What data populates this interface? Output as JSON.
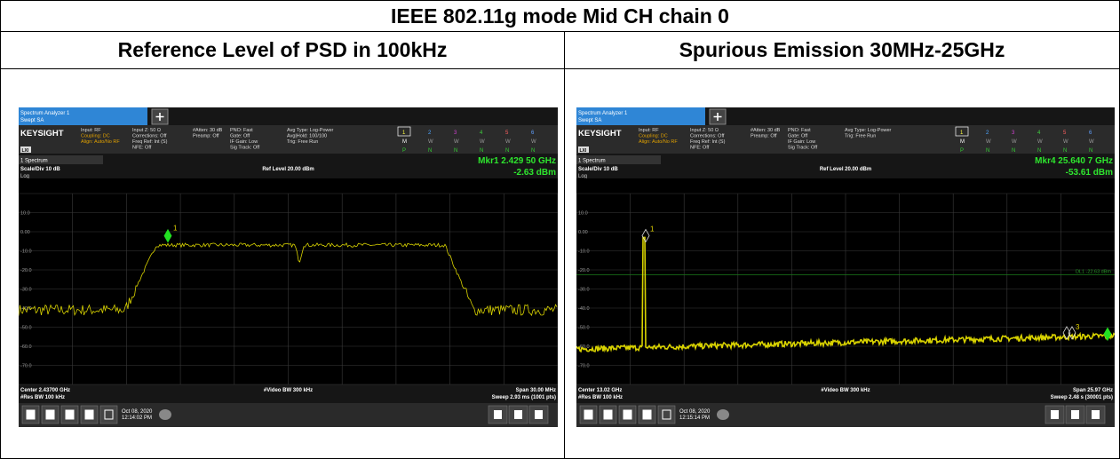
{
  "title": "IEEE 802.11g mode Mid CH chain 0",
  "columns": [
    "Reference Level of PSD in 100kHz",
    "Spurious Emission 30MHz-25GHz"
  ],
  "screens": [
    {
      "tab_title": "Spectrum Analyzer 1",
      "tab_sub": "Swept SA",
      "brand": "KEYSIGHT",
      "lxi": "LXI",
      "info": [
        [
          "Input: RF",
          "Coupling: DC",
          "Align: Auto/No RF"
        ],
        [
          "Input Z: 50 Ω",
          "Corrections: Off",
          "Freq Ref: Int (S)",
          "NFE: Off"
        ],
        [
          "#Atten: 30 dB",
          "Preamp: Off"
        ],
        [
          "PNO: Fast",
          "Gate: Off",
          "IF Gain: Low",
          "Sig Track: Off"
        ],
        [
          "Avg Type: Log-Power",
          "Avg|Hold: 100/100",
          "Trig: Free Run"
        ]
      ],
      "trace_numbers": [
        "1",
        "2",
        "3",
        "4",
        "5",
        "6"
      ],
      "trace_modes": [
        "M",
        "W",
        "W",
        "W",
        "W",
        "W"
      ],
      "trace_dets": [
        "P",
        "N",
        "N",
        "N",
        "N",
        "N"
      ],
      "view": "1 Spectrum",
      "marker": "Mkr1  2.429 50 GHz",
      "marker_value": "-2.63 dBm",
      "scale": "Scale/Div 10 dB",
      "ref": "Ref Level 20.00 dBm",
      "log": "Log",
      "ylabels": [
        "10.0",
        "0.00",
        "-10.0",
        "-20.0",
        "-30.0",
        "-40.0",
        "-50.0",
        "-60.0",
        "-70.0"
      ],
      "center": "Center 2.43700 GHz",
      "vbw": "#Video BW 300 kHz",
      "span": "Span 30.00 MHz",
      "rbw": "#Res BW 100 kHz",
      "sweep": "Sweep 2.93 ms (1001 pts)",
      "date": "Oct 08, 2020",
      "time": "12:14:02 PM",
      "markers": [
        "1"
      ]
    },
    {
      "tab_title": "Spectrum Analyzer 1",
      "tab_sub": "Swept SA",
      "brand": "KEYSIGHT",
      "lxi": "LXI",
      "info": [
        [
          "Input: RF",
          "Coupling: DC",
          "Align: Auto/No RF"
        ],
        [
          "Input Z: 50 Ω",
          "Corrections: Off",
          "Freq Ref: Int (S)",
          "NFE: Off"
        ],
        [
          "#Atten: 30 dB",
          "Preamp: Off"
        ],
        [
          "PNO: Fast",
          "Gate: Off",
          "IF Gain: Low",
          "Sig Track: Off"
        ],
        [
          "Avg Type: Log-Power",
          "Trig: Free Run"
        ]
      ],
      "trace_numbers": [
        "1",
        "2",
        "3",
        "4",
        "5",
        "6"
      ],
      "trace_modes": [
        "M",
        "W",
        "W",
        "W",
        "W",
        "W"
      ],
      "trace_dets": [
        "P",
        "N",
        "N",
        "N",
        "N",
        "N"
      ],
      "view": "1 Spectrum",
      "marker": "Mkr4  25.640 7 GHz",
      "marker_value": "-53.61 dBm",
      "scale": "Scale/Div 10 dB",
      "ref": "Ref Level 20.00 dBm",
      "log": "Log",
      "ylabels": [
        "10.0",
        "0.00",
        "-10.0",
        "-20.0",
        "-30.0",
        "-40.0",
        "-50.0",
        "-60.0",
        "-70.0"
      ],
      "center": "Center 13.02 GHz",
      "vbw": "#Video BW 300 kHz",
      "span": "Span 25.97 GHz",
      "rbw": "#Res BW 100 kHz",
      "sweep": "Sweep 2.48 s (30001 pts)",
      "date": "Oct 08, 2020",
      "time": "12:15:14 PM",
      "markers": [
        "1",
        "3"
      ],
      "display_line": "DL1 -22.63 dBm"
    }
  ]
}
